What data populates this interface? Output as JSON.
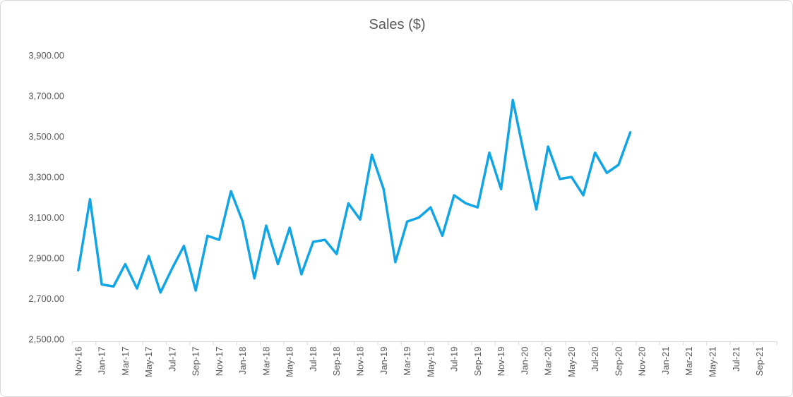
{
  "chart_data": {
    "type": "line",
    "title": "Sales ($)",
    "grid": false,
    "legend": "none",
    "ylim": [
      2500,
      3900
    ],
    "ytick_step": 200,
    "y_tick_values": [
      2500,
      2700,
      2900,
      3100,
      3300,
      3500,
      3700,
      3900
    ],
    "y_tick_labels": [
      "2,500.00",
      "2,700.00",
      "2,900.00",
      "3,100.00",
      "3,300.00",
      "3,500.00",
      "3,700.00",
      "3,900.00"
    ],
    "x_axis_labels": [
      "Nov-16",
      "Jan-17",
      "Mar-17",
      "May-17",
      "Jul-17",
      "Sep-17",
      "Nov-17",
      "Jan-18",
      "Mar-18",
      "May-18",
      "Jul-18",
      "Sep-18",
      "Nov-18",
      "Jan-19",
      "Mar-19",
      "May-19",
      "Jul-19",
      "Sep-19",
      "Nov-19",
      "Jan-20",
      "Mar-20",
      "May-20",
      "Jul-20",
      "Sep-20",
      "Nov-20",
      "Jan-21",
      "Mar-21",
      "May-21",
      "Jul-21",
      "Sep-21"
    ],
    "axis_categories_total": 60,
    "categories": [
      "Nov-16",
      "Dec-16",
      "Jan-17",
      "Feb-17",
      "Mar-17",
      "Apr-17",
      "May-17",
      "Jun-17",
      "Jul-17",
      "Aug-17",
      "Sep-17",
      "Oct-17",
      "Nov-17",
      "Dec-17",
      "Jan-18",
      "Feb-18",
      "Mar-18",
      "Apr-18",
      "May-18",
      "Jun-18",
      "Jul-18",
      "Aug-18",
      "Sep-18",
      "Oct-18",
      "Nov-18",
      "Dec-18",
      "Jan-19",
      "Feb-19",
      "Mar-19",
      "Apr-19",
      "May-19",
      "Jun-19",
      "Jul-19",
      "Aug-19",
      "Sep-19",
      "Oct-19",
      "Nov-19",
      "Dec-19",
      "Jan-20",
      "Feb-20",
      "Mar-20",
      "Apr-20",
      "May-20",
      "Jun-20",
      "Jul-20",
      "Aug-20",
      "Sep-20",
      "Oct-20"
    ],
    "values": [
      2840,
      3190,
      2770,
      2760,
      2870,
      2750,
      2910,
      2730,
      2850,
      2960,
      2740,
      3010,
      2990,
      3230,
      3080,
      2800,
      3060,
      2870,
      3050,
      2820,
      2980,
      2990,
      2920,
      3170,
      3090,
      3410,
      3240,
      2880,
      3080,
      3100,
      3150,
      3010,
      3210,
      3170,
      3150,
      3420,
      3240,
      3680,
      3400,
      3140,
      3450,
      3290,
      3300,
      3210,
      3420,
      3320,
      3360,
      3520
    ],
    "colors": {
      "line": "#12a5e5",
      "text": "#595959",
      "axis": "#d9d9d9",
      "background": "#ffffff",
      "border": "#d9d9d9"
    }
  }
}
